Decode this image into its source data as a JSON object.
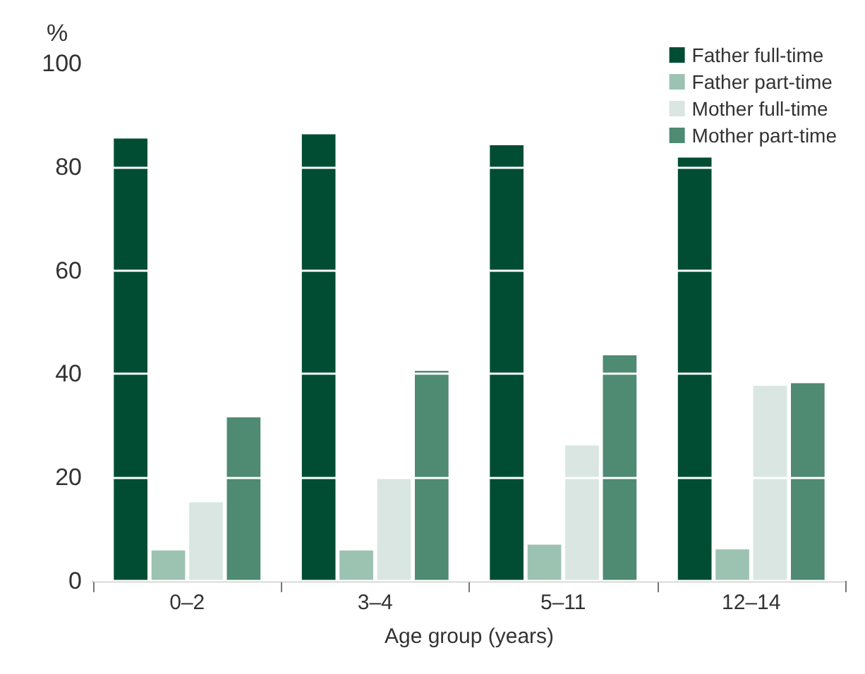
{
  "chart_data": {
    "type": "bar",
    "xlabel": "Age group (years)",
    "ylabel": "%",
    "categories": [
      "0–2",
      "3–4",
      "5–11",
      "12–14"
    ],
    "series": [
      {
        "name": "Father full-time",
        "color": "#004d33",
        "values": [
          85.5,
          86.3,
          84.2,
          81.8
        ]
      },
      {
        "name": "Father part-time",
        "color": "#9cc2b2",
        "values": [
          5.9,
          5.9,
          7.0,
          6.1
        ]
      },
      {
        "name": "Mother full-time",
        "color": "#d9e6e1",
        "values": [
          15.2,
          19.8,
          26.2,
          37.7
        ]
      },
      {
        "name": "Mother part-time",
        "color": "#4f8a73",
        "values": [
          31.6,
          40.6,
          43.6,
          38.2
        ]
      }
    ],
    "ylim": [
      0,
      100
    ],
    "yticks": [
      0,
      20,
      40,
      60,
      80,
      100
    ],
    "grid": "y",
    "legend": "top right"
  }
}
